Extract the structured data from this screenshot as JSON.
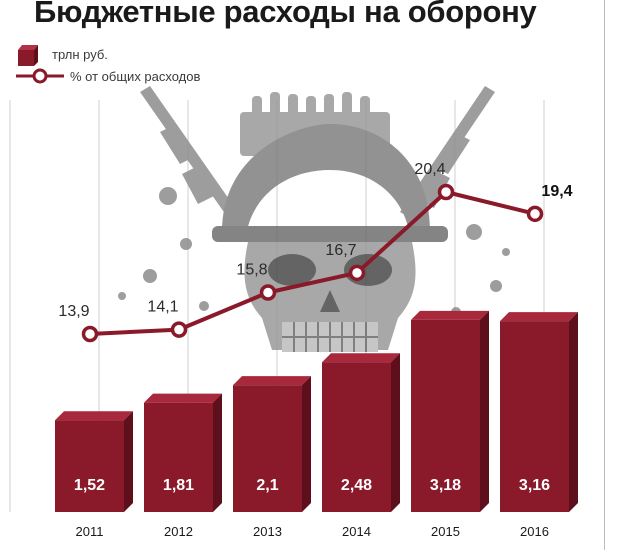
{
  "title": "Бюджетные расходы на оборону",
  "legend": {
    "bars": "трлн руб.",
    "line": "% от общих расходов"
  },
  "colors": {
    "bar": "#8a1a2a",
    "bar_edge": "#5e0f1c",
    "line": "#8a1a2a",
    "grid": "#cfcfcf",
    "illustration": "#8d8d8d"
  },
  "illustration": "skull-with-helmet-and-rifles",
  "chart_data": {
    "type": "bar",
    "categories": [
      "2011",
      "2012",
      "2013",
      "2014",
      "2015",
      "2016"
    ],
    "series": [
      {
        "name": "трлн руб.",
        "type": "bar",
        "values": [
          1.52,
          1.81,
          2.1,
          2.48,
          3.18,
          3.16
        ],
        "labels": [
          "1,52",
          "1,81",
          "2,1",
          "2,48",
          "3,18",
          "3,16"
        ]
      },
      {
        "name": "% от общих расходов",
        "type": "line",
        "values": [
          13.9,
          14.1,
          15.8,
          16.7,
          20.4,
          19.4
        ],
        "labels": [
          "13,9",
          "14,1",
          "15,8",
          "16,7",
          "20,4",
          "19,4"
        ]
      }
    ],
    "bar_ylim": [
      0,
      3.6
    ],
    "line_ylim": [
      8,
      21.5
    ],
    "grid": true,
    "legend_position": "top-left"
  }
}
